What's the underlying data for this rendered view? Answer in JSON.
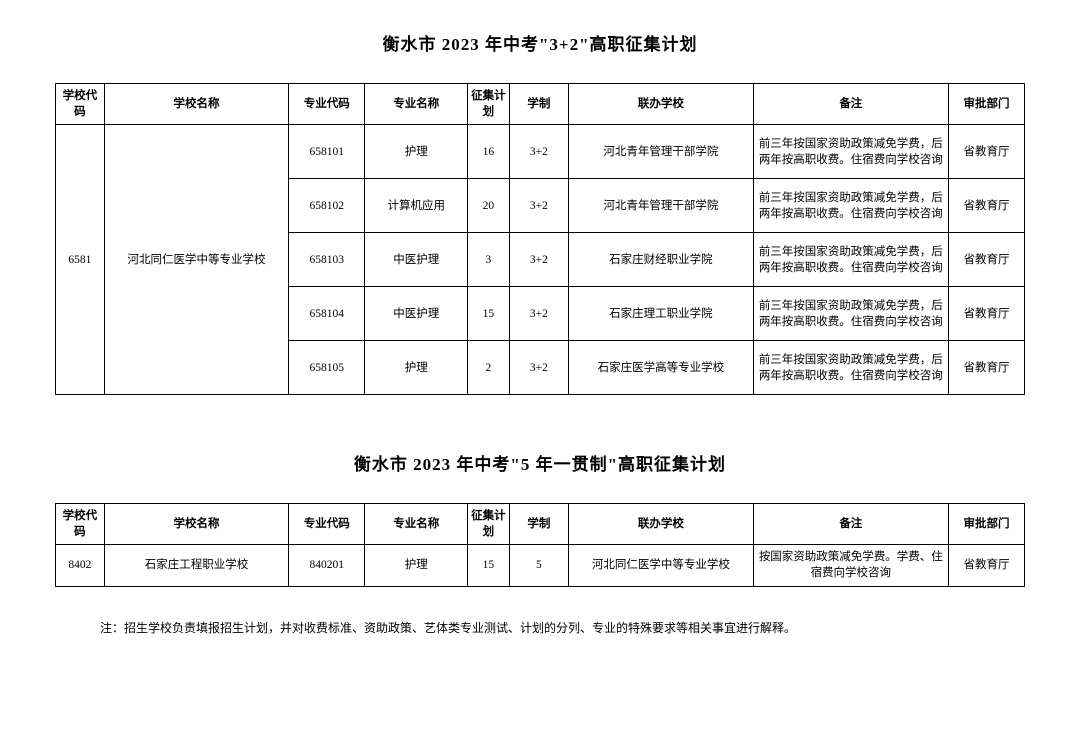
{
  "table1": {
    "title": "衡水市 2023 年中考\"3+2\"高职征集计划",
    "columns": [
      "学校代码",
      "学校名称",
      "专业代码",
      "专业名称",
      "征集计划",
      "学制",
      "联办学校",
      "备注",
      "审批部门"
    ],
    "school_code": "6581",
    "school_name": "河北同仁医学中等专业学校",
    "rows": [
      {
        "mcode": "658101",
        "mname": "护理",
        "plan": "16",
        "sys": "3+2",
        "partner": "河北青年管理干部学院",
        "note": "前三年按国家资助政策减免学费，后两年按高职收费。住宿费向学校咨询",
        "dept": "省教育厅"
      },
      {
        "mcode": "658102",
        "mname": "计算机应用",
        "plan": "20",
        "sys": "3+2",
        "partner": "河北青年管理干部学院",
        "note": "前三年按国家资助政策减免学费，后两年按高职收费。住宿费向学校咨询",
        "dept": "省教育厅"
      },
      {
        "mcode": "658103",
        "mname": "中医护理",
        "plan": "3",
        "sys": "3+2",
        "partner": "石家庄财经职业学院",
        "note": "前三年按国家资助政策减免学费，后两年按高职收费。住宿费向学校咨询",
        "dept": "省教育厅"
      },
      {
        "mcode": "658104",
        "mname": "中医护理",
        "plan": "15",
        "sys": "3+2",
        "partner": "石家庄理工职业学院",
        "note": "前三年按国家资助政策减免学费，后两年按高职收费。住宿费向学校咨询",
        "dept": "省教育厅"
      },
      {
        "mcode": "658105",
        "mname": "护理",
        "plan": "2",
        "sys": "3+2",
        "partner": "石家庄医学高等专业学校",
        "note": "前三年按国家资助政策减免学费，后两年按高职收费。住宿费向学校咨询",
        "dept": "省教育厅"
      }
    ]
  },
  "table2": {
    "title": "衡水市 2023 年中考\"5 年一贯制\"高职征集计划",
    "columns": [
      "学校代码",
      "学校名称",
      "专业代码",
      "专业名称",
      "征集计划",
      "学制",
      "联办学校",
      "备注",
      "审批部门"
    ],
    "rows": [
      {
        "code": "8402",
        "school": "石家庄工程职业学校",
        "mcode": "840201",
        "mname": "护理",
        "plan": "15",
        "sys": "5",
        "partner": "河北同仁医学中等专业学校",
        "note": "按国家资助政策减免学费。学费、住宿费向学校咨询",
        "dept": "省教育厅"
      }
    ]
  },
  "footnote": "注：招生学校负责填报招生计划，并对收费标准、资助政策、艺体类专业测试、计划的分列、专业的特殊要求等相关事宜进行解释。"
}
